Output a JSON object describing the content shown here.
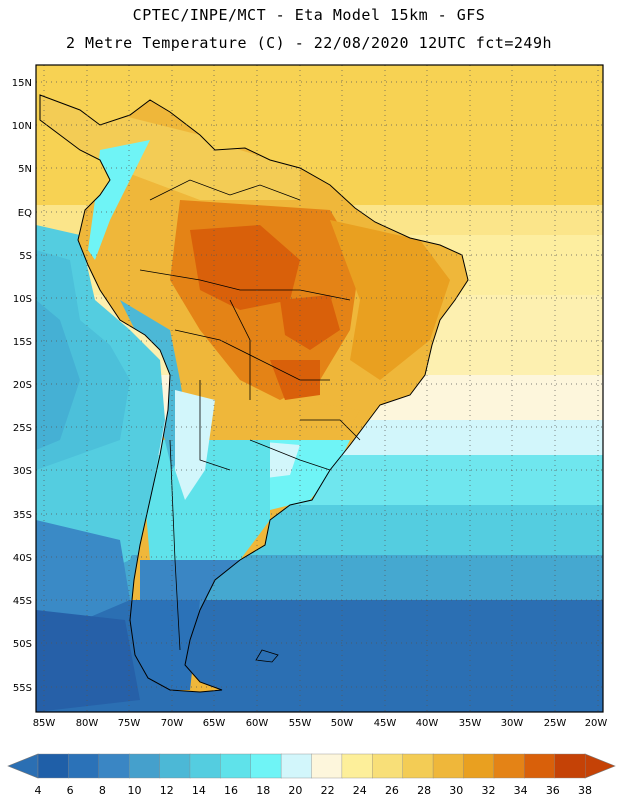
{
  "header": {
    "title_line1": "CPTEC/INPE/MCT -  Eta Model 15km - GFS",
    "title_line2": "2 Metre Temperature (C) - 22/08/2020 12UTC fct=249h"
  },
  "map": {
    "lat_labels": [
      "15N",
      "10N",
      "5N",
      "EQ",
      "5S",
      "10S",
      "15S",
      "20S",
      "25S",
      "30S",
      "35S",
      "40S",
      "45S",
      "50S",
      "55S"
    ],
    "lon_labels": [
      "85W",
      "80W",
      "75W",
      "70W",
      "65W",
      "60W",
      "55W",
      "50W",
      "45W",
      "40W",
      "35W",
      "30W",
      "25W",
      "20W"
    ]
  },
  "colorbar": {
    "labels": [
      "4",
      "6",
      "8",
      "10",
      "12",
      "14",
      "16",
      "18",
      "20",
      "22",
      "24",
      "26",
      "28",
      "30",
      "32",
      "34",
      "36",
      "38"
    ],
    "colors": [
      "#1f5fa8",
      "#2b72b8",
      "#3a86c4",
      "#45a0cc",
      "#4cb8d6",
      "#54cde0",
      "#5fe2ea",
      "#6ff4f6",
      "#d2f6fb",
      "#fdf6dc",
      "#fdef9a",
      "#f8df78",
      "#f3cc55",
      "#efb73a",
      "#e9a020",
      "#e48316",
      "#d9600a",
      "#c54206"
    ]
  }
}
